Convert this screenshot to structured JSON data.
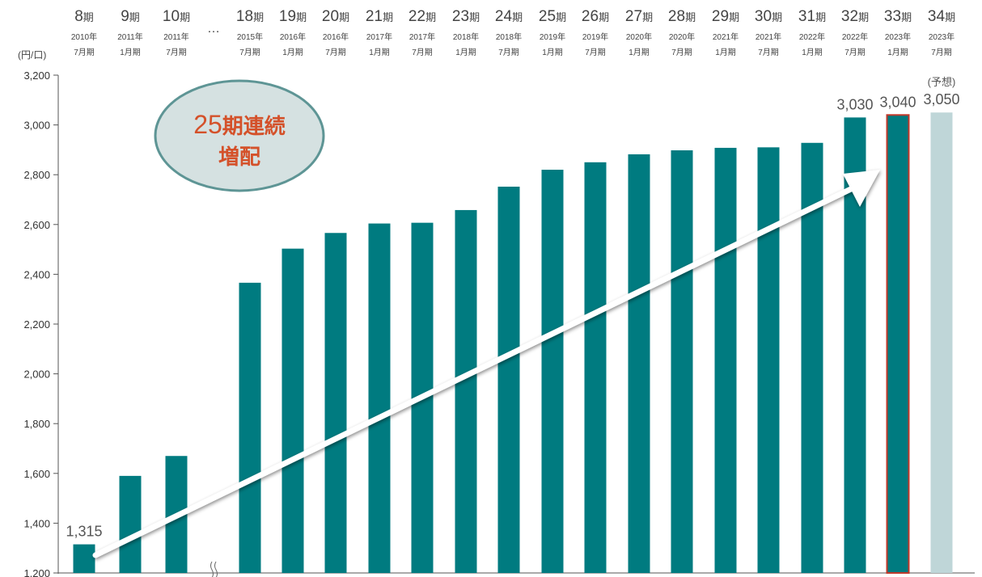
{
  "chart_data": {
    "type": "bar",
    "unit_label": "(円/口)",
    "y_ticks": [
      "1,200",
      "1,400",
      "1,600",
      "1,800",
      "2,000",
      "2,200",
      "2,400",
      "2,600",
      "2,800",
      "3,000",
      "3,200"
    ],
    "ylim": [
      1200,
      3200
    ],
    "ellipsis": "…",
    "categories": [
      {
        "num": "8",
        "suffix": "期",
        "year": "2010年",
        "month": "7月期"
      },
      {
        "num": "9",
        "suffix": "期",
        "year": "2011年",
        "month": "1月期"
      },
      {
        "num": "10",
        "suffix": "期",
        "year": "2011年",
        "month": "7月期"
      },
      {
        "num": "18",
        "suffix": "期",
        "year": "2015年",
        "month": "7月期"
      },
      {
        "num": "19",
        "suffix": "期",
        "year": "2016年",
        "month": "1月期"
      },
      {
        "num": "20",
        "suffix": "期",
        "year": "2016年",
        "month": "7月期"
      },
      {
        "num": "21",
        "suffix": "期",
        "year": "2017年",
        "month": "1月期"
      },
      {
        "num": "22",
        "suffix": "期",
        "year": "2017年",
        "month": "7月期"
      },
      {
        "num": "23",
        "suffix": "期",
        "year": "2018年",
        "month": "1月期"
      },
      {
        "num": "24",
        "suffix": "期",
        "year": "2018年",
        "month": "7月期"
      },
      {
        "num": "25",
        "suffix": "期",
        "year": "2019年",
        "month": "1月期"
      },
      {
        "num": "26",
        "suffix": "期",
        "year": "2019年",
        "month": "7月期"
      },
      {
        "num": "27",
        "suffix": "期",
        "year": "2020年",
        "month": "1月期"
      },
      {
        "num": "28",
        "suffix": "期",
        "year": "2020年",
        "month": "7月期"
      },
      {
        "num": "29",
        "suffix": "期",
        "year": "2021年",
        "month": "1月期"
      },
      {
        "num": "30",
        "suffix": "期",
        "year": "2021年",
        "month": "7月期"
      },
      {
        "num": "31",
        "suffix": "期",
        "year": "2022年",
        "month": "1月期"
      },
      {
        "num": "32",
        "suffix": "期",
        "year": "2022年",
        "month": "7月期"
      },
      {
        "num": "33",
        "suffix": "期",
        "year": "2023年",
        "month": "1月期"
      },
      {
        "num": "34",
        "suffix": "期",
        "year": "2023年",
        "month": "7月期"
      }
    ],
    "values": [
      1315,
      1590,
      1670,
      2366,
      2503,
      2566,
      2604,
      2607,
      2658,
      2752,
      2820,
      2850,
      2882,
      2898,
      2908,
      2910,
      2928,
      3030,
      3040,
      3050
    ],
    "value_labels": [
      {
        "index": 0,
        "text": "1,315"
      },
      {
        "index": 17,
        "text": "3,030"
      },
      {
        "index": 18,
        "text": "3,040"
      },
      {
        "index": 19,
        "text": "3,050"
      }
    ],
    "forecast_note": "(予想)",
    "forecast_index": 19,
    "highlight_index": 18,
    "badge": {
      "big": "25",
      "rest": "期連続",
      "line2": "増配"
    },
    "colors": {
      "bar": "#007b80",
      "forecast_bar": "#bfd6d8",
      "highlight_border": "#c0392b",
      "badge_fill": "#d5e1e1",
      "badge_stroke": "#5e9595",
      "badge_text": "#d4512a",
      "arrow": "#ffffff"
    }
  }
}
